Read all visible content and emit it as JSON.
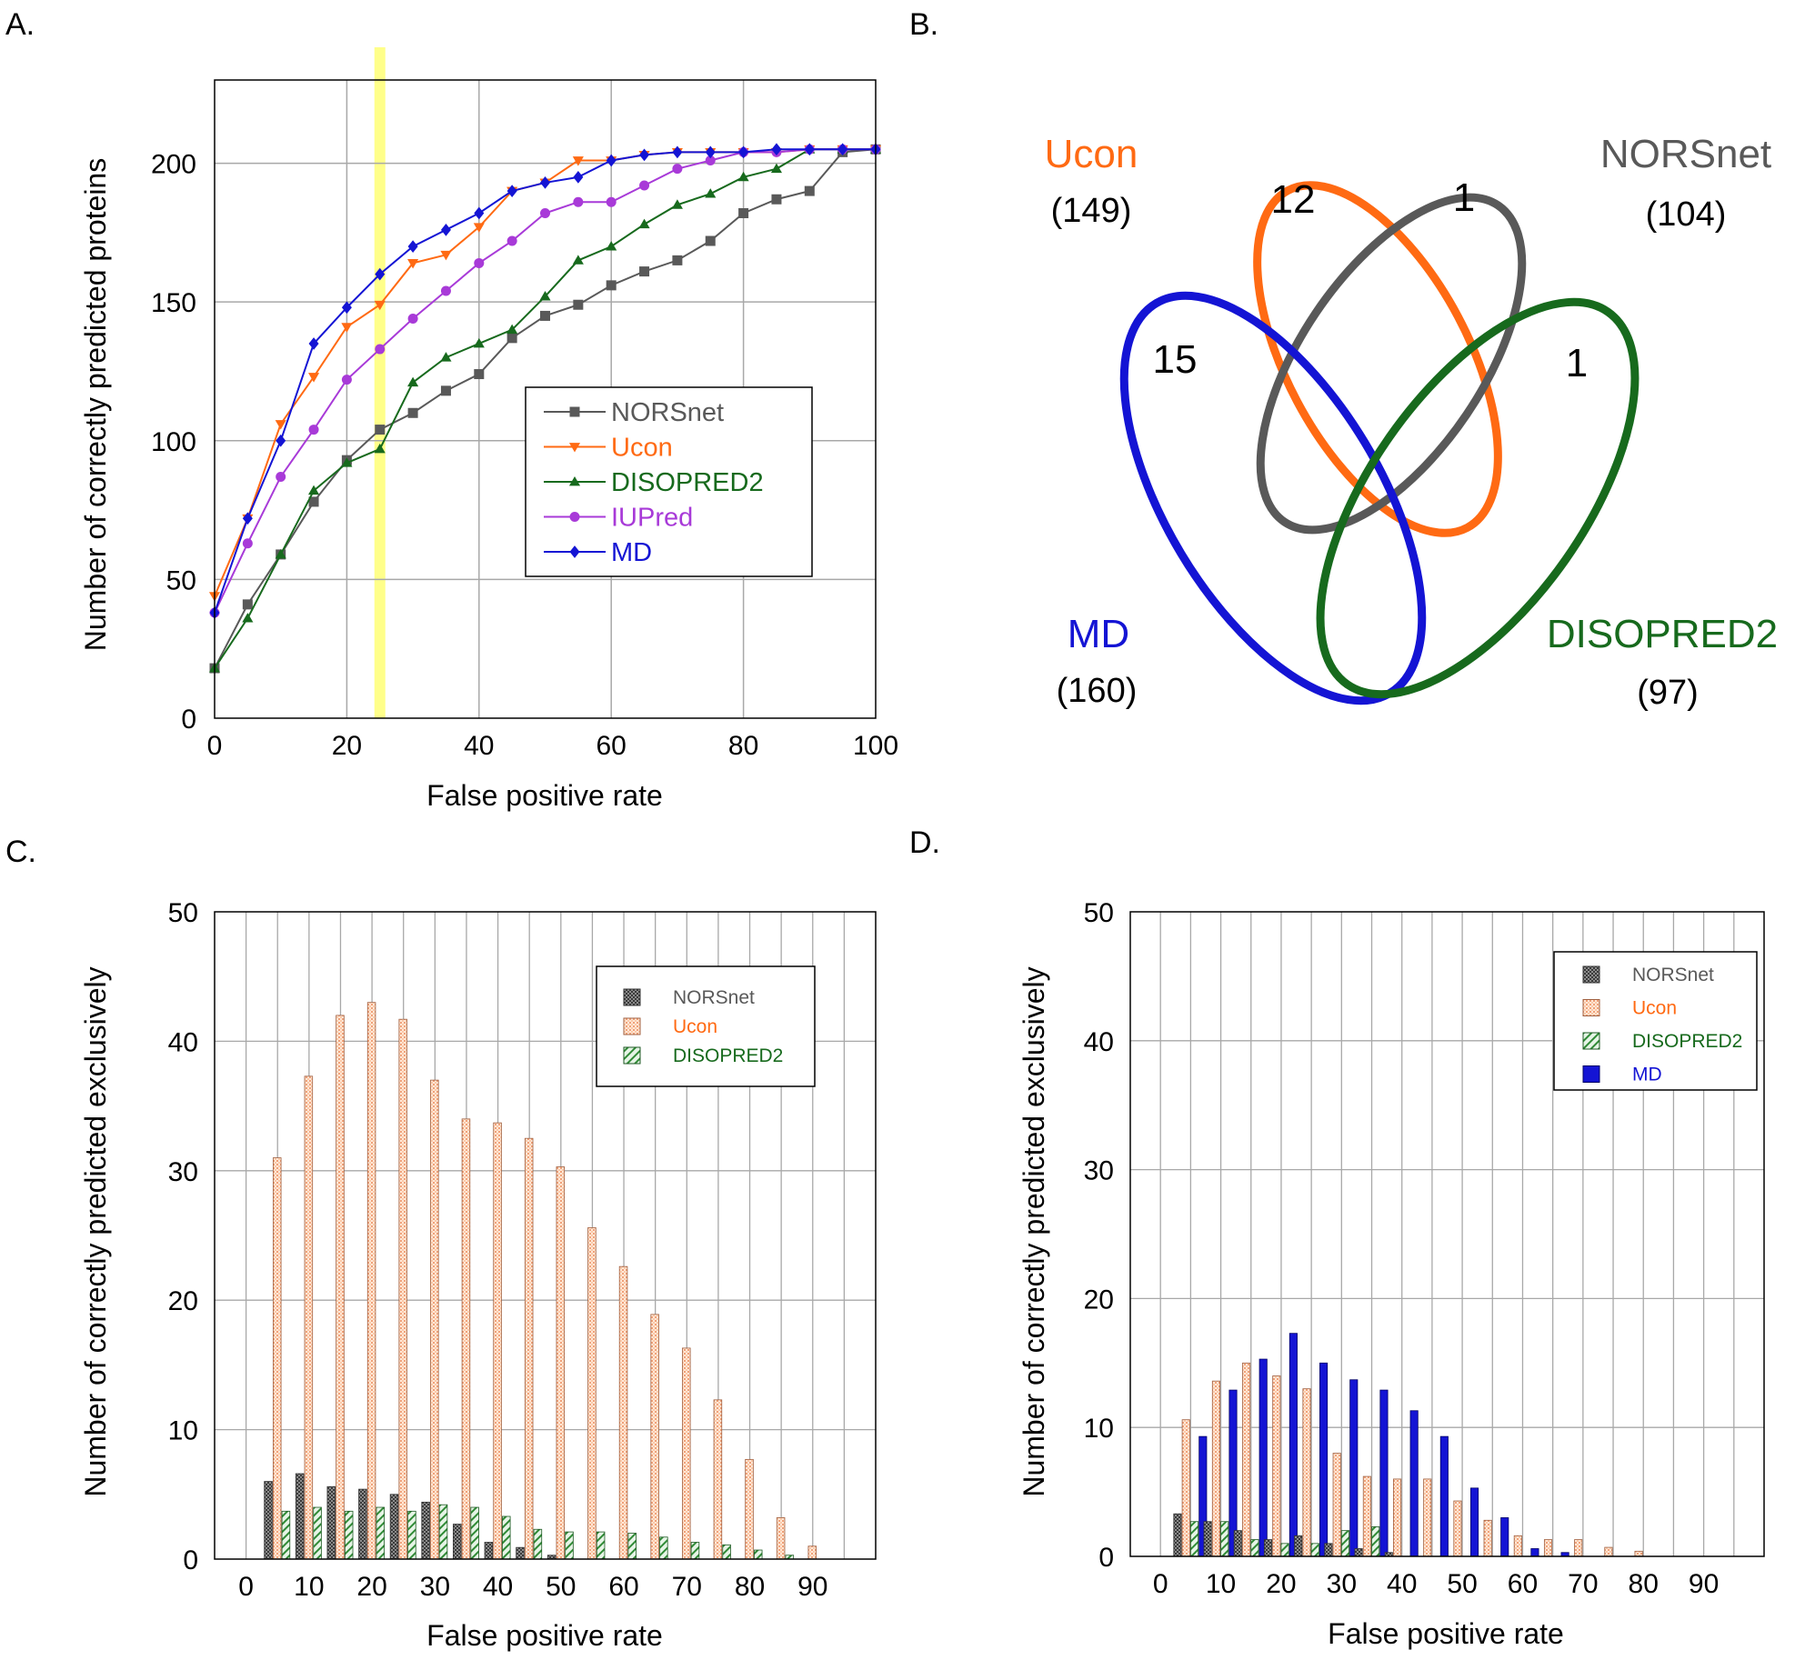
{
  "panel_labels": {
    "a": "A.",
    "b": "B.",
    "c": "C.",
    "d": "D."
  },
  "colors": {
    "NORSnet": "#595959",
    "Ucon": "#ff6a13",
    "DISOPRED2": "#176a1d",
    "IUPred": "#a83ad8",
    "MD": "#1414d4",
    "highlight": "#ffff8a",
    "grid": "#a8a8a8"
  },
  "chart_data": [
    {
      "id": "A",
      "type": "line",
      "xlabel": "False positive rate",
      "ylabel": "Number of correctly predicted proteins",
      "xlim": [
        0,
        100
      ],
      "ylim": [
        0,
        230
      ],
      "xticks": [
        "0",
        "20",
        "40",
        "60",
        "80",
        "100"
      ],
      "yticks": [
        "0",
        "50",
        "100",
        "150",
        "200"
      ],
      "highlight_x": 25,
      "grid": true,
      "legend_position": "center-right",
      "x": [
        0,
        5,
        10,
        15,
        20,
        25,
        30,
        35,
        40,
        45,
        50,
        55,
        60,
        65,
        70,
        75,
        80,
        85,
        90,
        95,
        100
      ],
      "series": [
        {
          "name": "NORSnet",
          "marker": "square",
          "values": [
            18,
            41,
            59,
            78,
            93,
            104,
            110,
            118,
            124,
            137,
            145,
            149,
            156,
            161,
            165,
            172,
            182,
            187,
            190,
            204,
            205
          ]
        },
        {
          "name": "Ucon",
          "marker": "triangle-down",
          "values": [
            44,
            72,
            106,
            123,
            141,
            149,
            164,
            167,
            177,
            190,
            193,
            201,
            201,
            203,
            204,
            204,
            204,
            204,
            205,
            205,
            205
          ]
        },
        {
          "name": "DISOPRED2",
          "marker": "triangle-up",
          "values": [
            18,
            36,
            59,
            82,
            92,
            97,
            121,
            130,
            135,
            140,
            152,
            165,
            170,
            178,
            185,
            189,
            195,
            198,
            205,
            205,
            205
          ]
        },
        {
          "name": "IUPred",
          "marker": "circle",
          "values": [
            38,
            63,
            87,
            104,
            122,
            133,
            144,
            154,
            164,
            172,
            182,
            186,
            186,
            192,
            198,
            201,
            204,
            204,
            205,
            205,
            205
          ]
        },
        {
          "name": "MD",
          "marker": "diamond",
          "values": [
            38,
            72,
            100,
            135,
            148,
            160,
            170,
            176,
            182,
            190,
            193,
            195,
            201,
            203,
            204,
            204,
            204,
            205,
            205,
            205,
            205
          ]
        }
      ]
    },
    {
      "id": "B",
      "type": "venn",
      "sets": [
        {
          "name": "Ucon",
          "count_label": "(149)"
        },
        {
          "name": "NORSnet",
          "count_label": "(104)"
        },
        {
          "name": "MD",
          "count_label": "(160)"
        },
        {
          "name": "DISOPRED2",
          "count_label": "(97)"
        }
      ],
      "regions": [
        {
          "sets": [
            "Ucon",
            "NORSnet"
          ],
          "label": "12"
        },
        {
          "sets": [
            "NORSnet"
          ],
          "label": "1"
        },
        {
          "sets": [
            "MD"
          ],
          "label": "15"
        },
        {
          "sets": [
            "DISOPRED2"
          ],
          "label": "1"
        }
      ]
    },
    {
      "id": "C",
      "type": "bar",
      "xlabel": "False positive rate",
      "ylabel": "Number of correctly predicted exclusively",
      "xlim": [
        -5,
        100
      ],
      "ylim": [
        0,
        50
      ],
      "xticks": [
        "0",
        "10",
        "20",
        "30",
        "40",
        "50",
        "60",
        "70",
        "80",
        "90"
      ],
      "yticks": [
        "0",
        "10",
        "20",
        "30",
        "40",
        "50"
      ],
      "grid": true,
      "legend_position": "top-right",
      "x": [
        5,
        10,
        15,
        20,
        25,
        30,
        35,
        40,
        45,
        50,
        55,
        60,
        65,
        70,
        75,
        80,
        85,
        90
      ],
      "series": [
        {
          "name": "NORSnet",
          "values": [
            6.0,
            6.6,
            5.6,
            5.4,
            5.0,
            4.4,
            2.7,
            1.3,
            0.9,
            0.3,
            0,
            0,
            0,
            0,
            0,
            0,
            0,
            0
          ]
        },
        {
          "name": "Ucon",
          "values": [
            31.0,
            37.3,
            42.0,
            43.0,
            41.7,
            37.0,
            34.0,
            33.7,
            32.5,
            30.3,
            25.6,
            22.6,
            18.9,
            16.3,
            12.3,
            7.7,
            3.2,
            1.0
          ]
        },
        {
          "name": "DISOPRED2",
          "values": [
            3.7,
            4.0,
            3.7,
            4.0,
            3.7,
            4.2,
            4.0,
            3.3,
            2.3,
            2.1,
            2.1,
            2.0,
            1.7,
            1.3,
            1.1,
            0.7,
            0.3,
            0
          ]
        }
      ]
    },
    {
      "id": "D",
      "type": "bar",
      "xlabel": "False positive rate",
      "ylabel": "Number of correctly predicted exclusively",
      "xlim": [
        -5,
        100
      ],
      "ylim": [
        0,
        50
      ],
      "xticks": [
        "0",
        "10",
        "20",
        "30",
        "40",
        "50",
        "60",
        "70",
        "80",
        "90"
      ],
      "yticks": [
        "0",
        "10",
        "20",
        "30",
        "40",
        "50"
      ],
      "grid": true,
      "legend_position": "top-right",
      "x": [
        5,
        10,
        15,
        20,
        25,
        30,
        35,
        40,
        45,
        50,
        55,
        60,
        65,
        70,
        75,
        80,
        85,
        90
      ],
      "series": [
        {
          "name": "NORSnet",
          "values": [
            3.3,
            2.7,
            2.0,
            1.3,
            1.6,
            1.0,
            0.6,
            0.3,
            0,
            0,
            0,
            0,
            0,
            0,
            0,
            0,
            0,
            0
          ]
        },
        {
          "name": "Ucon",
          "values": [
            10.6,
            13.6,
            15.0,
            14.0,
            13.0,
            8.0,
            6.2,
            6.0,
            6.0,
            4.3,
            2.8,
            1.6,
            1.3,
            1.3,
            0.7,
            0.4,
            0,
            0
          ]
        },
        {
          "name": "DISOPRED2",
          "values": [
            2.7,
            2.7,
            1.3,
            1.0,
            1.0,
            2.0,
            2.3,
            0,
            0,
            0,
            0,
            0,
            0,
            0,
            0,
            0,
            0,
            0
          ]
        },
        {
          "name": "MD",
          "values": [
            9.3,
            12.9,
            15.3,
            17.3,
            15.0,
            13.7,
            12.9,
            11.3,
            9.3,
            5.3,
            3.0,
            0.6,
            0.3,
            0,
            0,
            0,
            0,
            0
          ]
        }
      ]
    }
  ]
}
